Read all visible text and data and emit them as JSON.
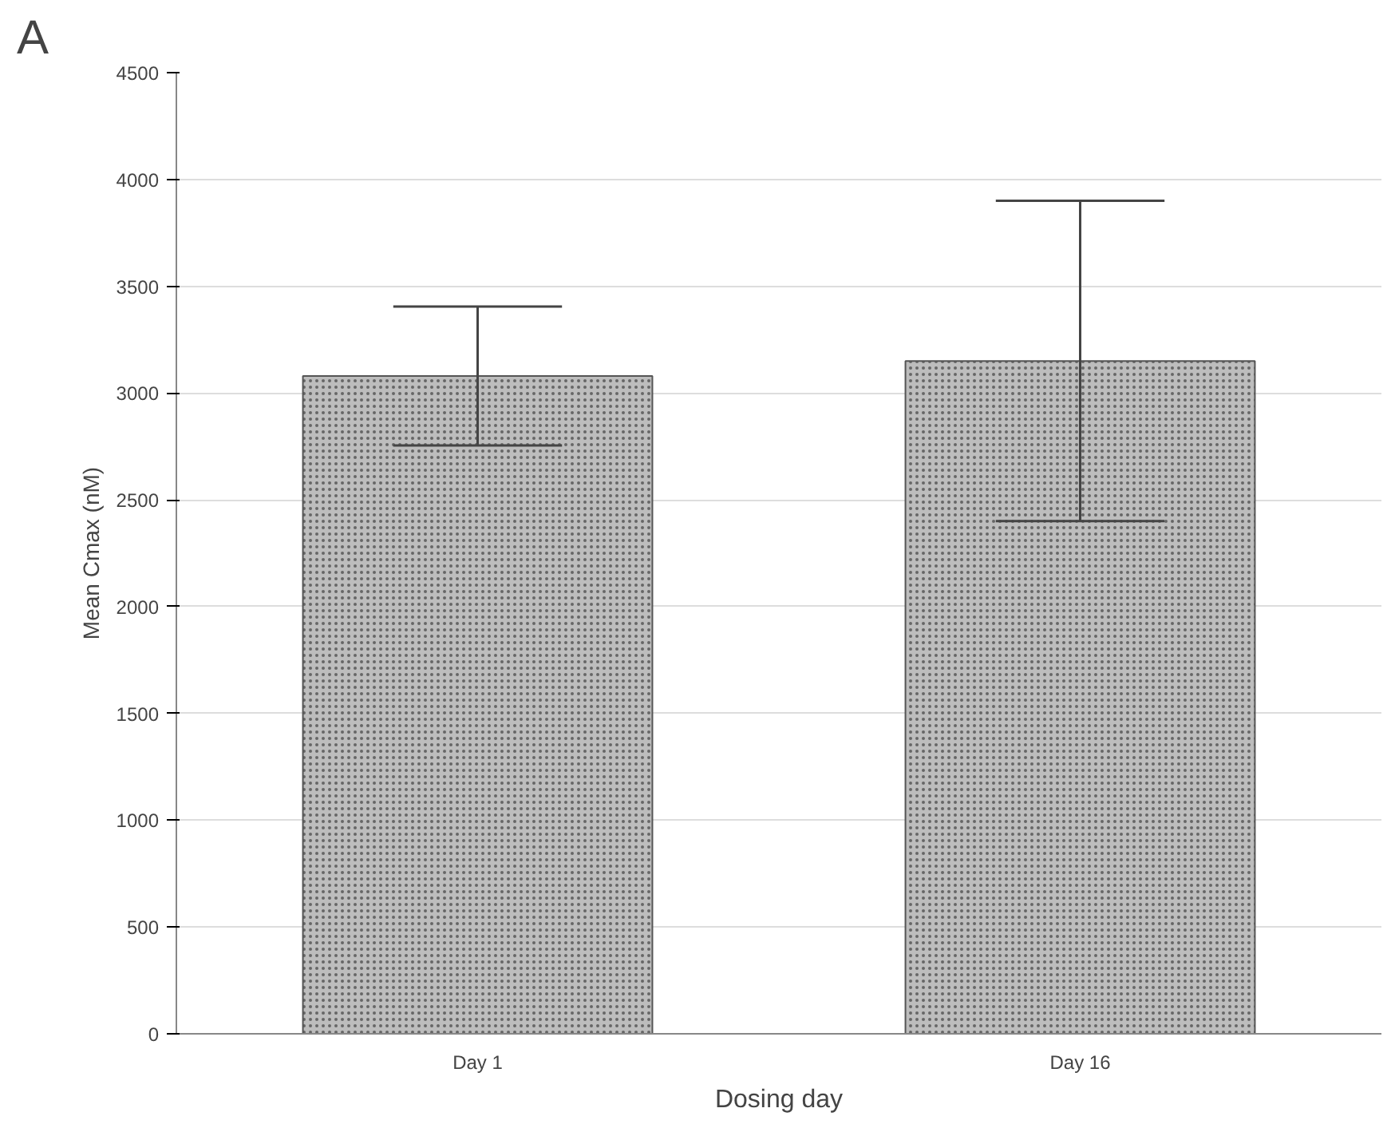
{
  "chart_data": {
    "type": "bar",
    "xlabel": "Dosing day",
    "ylabel": "Mean Cmax (nM)",
    "categories": [
      "Day 1",
      "Day 16"
    ],
    "values": [
      3080,
      3150
    ],
    "color": "#bdbdbd",
    "errors": [
      325,
      750
    ],
    "ylim": [
      0,
      4500
    ],
    "yticks": [
      0,
      500,
      1000,
      1500,
      2000,
      2500,
      3000,
      3500,
      4000,
      4500
    ],
    "grid": "y",
    "annotations": [
      "A"
    ]
  }
}
